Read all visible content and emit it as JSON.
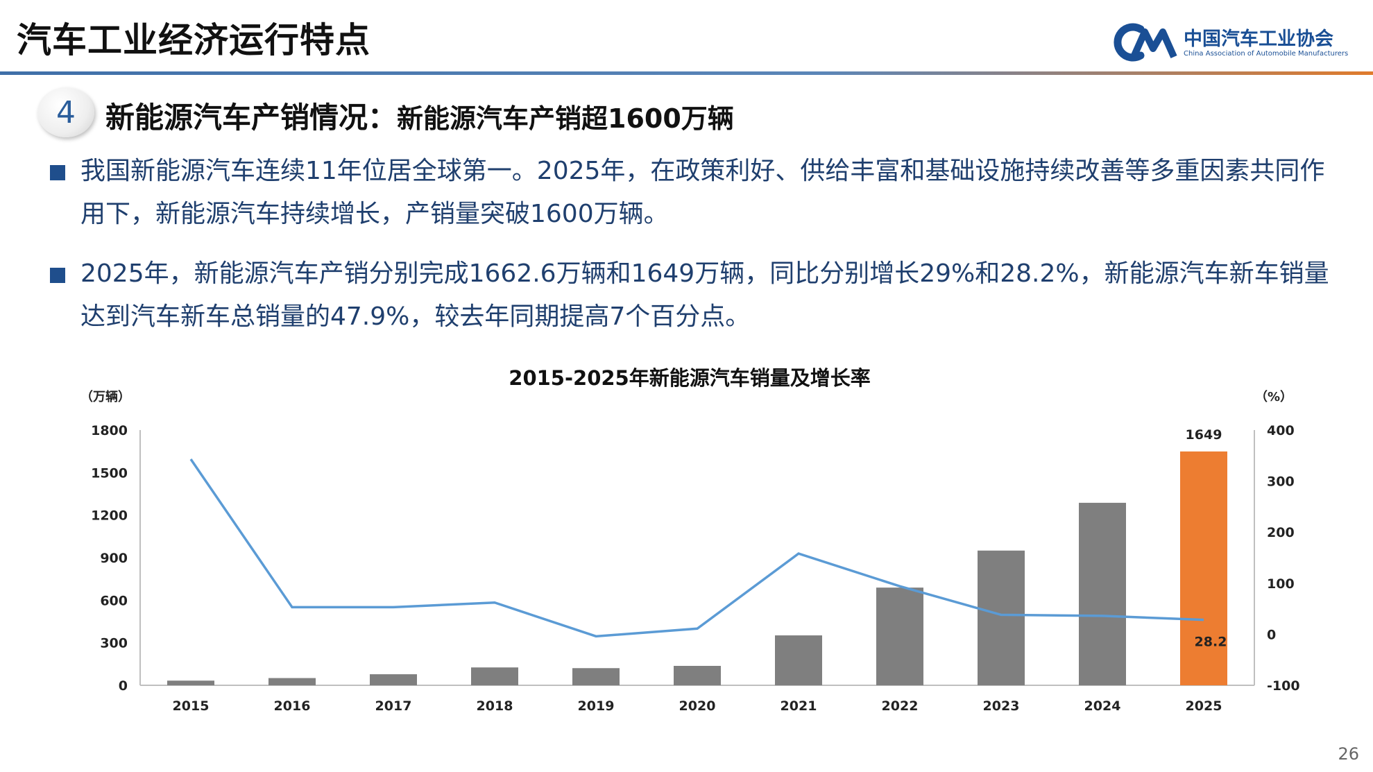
{
  "header": {
    "title": "汽车工业经济运行特点",
    "logo_name": "中国汽车工业协会",
    "logo_sub": "China Association of Automobile Manufacturers"
  },
  "section": {
    "number": "4",
    "title": "新能源汽车产销情况：",
    "subtitle": "新能源汽车产销超1600万辆"
  },
  "bullets": [
    "我国新能源汽车连续11年位居全球第一。2025年，在政策利好、供给丰富和基础设施持续改善等多重因素共同作用下，新能源汽车持续增长，产销量突破1600万辆。",
    "2025年，新能源汽车产销分别完成1662.6万辆和1649万辆，同比分别增长29%和28.2%，新能源汽车新车销量达到汽车新车总销量的47.9%，较去年同期提高7个百分点。"
  ],
  "page_number": "26",
  "colors": {
    "bar": "#7f7f7f",
    "bar_highlight": "#ed7d31",
    "line": "#5b9bd5",
    "text_blue": "#1f3f6e"
  },
  "chart_data": {
    "type": "bar",
    "title": "2015-2025年新能源汽车销量及增长率",
    "y_unit_left": "（万辆）",
    "y_unit_right": "（%）",
    "categories": [
      "2015",
      "2016",
      "2017",
      "2018",
      "2019",
      "2020",
      "2021",
      "2022",
      "2023",
      "2024",
      "2025"
    ],
    "left_ticks": [
      "0",
      "300",
      "600",
      "900",
      "1200",
      "1500",
      "1800"
    ],
    "right_ticks": [
      "-100",
      "0",
      "100",
      "200",
      "300",
      "400"
    ],
    "ylim_left": [
      0,
      1800
    ],
    "ylim_right": [
      -100,
      400
    ],
    "series": [
      {
        "type": "bar",
        "axis": "left",
        "values": [
          33,
          51,
          78,
          126,
          121,
          137,
          352,
          689,
          950,
          1287,
          1649
        ]
      },
      {
        "type": "line",
        "axis": "right",
        "values": [
          343,
          53,
          53,
          62,
          -4,
          11,
          158,
          94,
          38,
          36,
          28.2
        ]
      }
    ],
    "data_labels": {
      "bar_last": "1649",
      "line_last": "28.2"
    },
    "legend": "none",
    "grid": false
  }
}
